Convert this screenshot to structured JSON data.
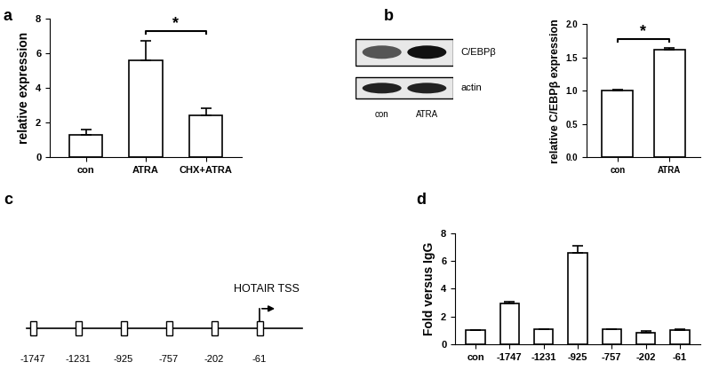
{
  "panel_labels": [
    "a",
    "b",
    "c",
    "d"
  ],
  "chart_data": [
    {
      "type": "bar",
      "categories": [
        "con",
        "ATRA",
        "CHX+ATRA"
      ],
      "values": [
        1.3,
        5.6,
        2.4
      ],
      "errors": [
        0.3,
        1.1,
        0.4
      ],
      "color": "#ffffff",
      "ylabel": "relative expression",
      "ylim": [
        0,
        8
      ],
      "yticks": [
        0,
        2,
        4,
        6,
        8
      ],
      "annotations": [
        {
          "text": "*",
          "categories": [
            "ATRA",
            "CHX+ATRA"
          ]
        }
      ]
    },
    {
      "type": "bar",
      "categories": [
        "con",
        "ATRA"
      ],
      "values": [
        1.0,
        1.62
      ],
      "errors": [
        0.01,
        0.02
      ],
      "color": "#ffffff",
      "ylabel": "relative C/EBPβ expression",
      "ylim": [
        0,
        2.0
      ],
      "yticks": [
        {
          "value": 0,
          "label": "0.0"
        },
        {
          "value": 0.5,
          "label": "0.5"
        },
        {
          "value": 1.0,
          "label": "1.0"
        },
        {
          "value": 1.5,
          "label": "1.5"
        },
        {
          "value": 2.0,
          "label": "2.0"
        }
      ],
      "annotations": [
        {
          "text": "*",
          "categories": [
            "con",
            "ATRA"
          ]
        }
      ]
    },
    {
      "type": "bar",
      "categories": [
        "con",
        "-1747",
        "-1231",
        "-925",
        "-757",
        "-202",
        "-61"
      ],
      "values": [
        1.0,
        2.95,
        1.05,
        6.55,
        1.05,
        0.8,
        1.0
      ],
      "errors": [
        0.02,
        0.1,
        0.05,
        0.55,
        0.05,
        0.15,
        0.05
      ],
      "color": "#ffffff",
      "ylabel": "Fold versus IgG",
      "ylim": [
        0,
        8
      ],
      "yticks": [
        0,
        2,
        4,
        6,
        8
      ]
    }
  ],
  "blot": {
    "proteins": [
      "C/EBPβ",
      "actin"
    ],
    "lanes": [
      "con",
      "ATRA"
    ]
  },
  "diagram": {
    "sites": [
      "-1747",
      "-1231",
      "-925",
      "-757",
      "-202",
      "-61"
    ],
    "tss_label": "HOTAIR TSS"
  }
}
